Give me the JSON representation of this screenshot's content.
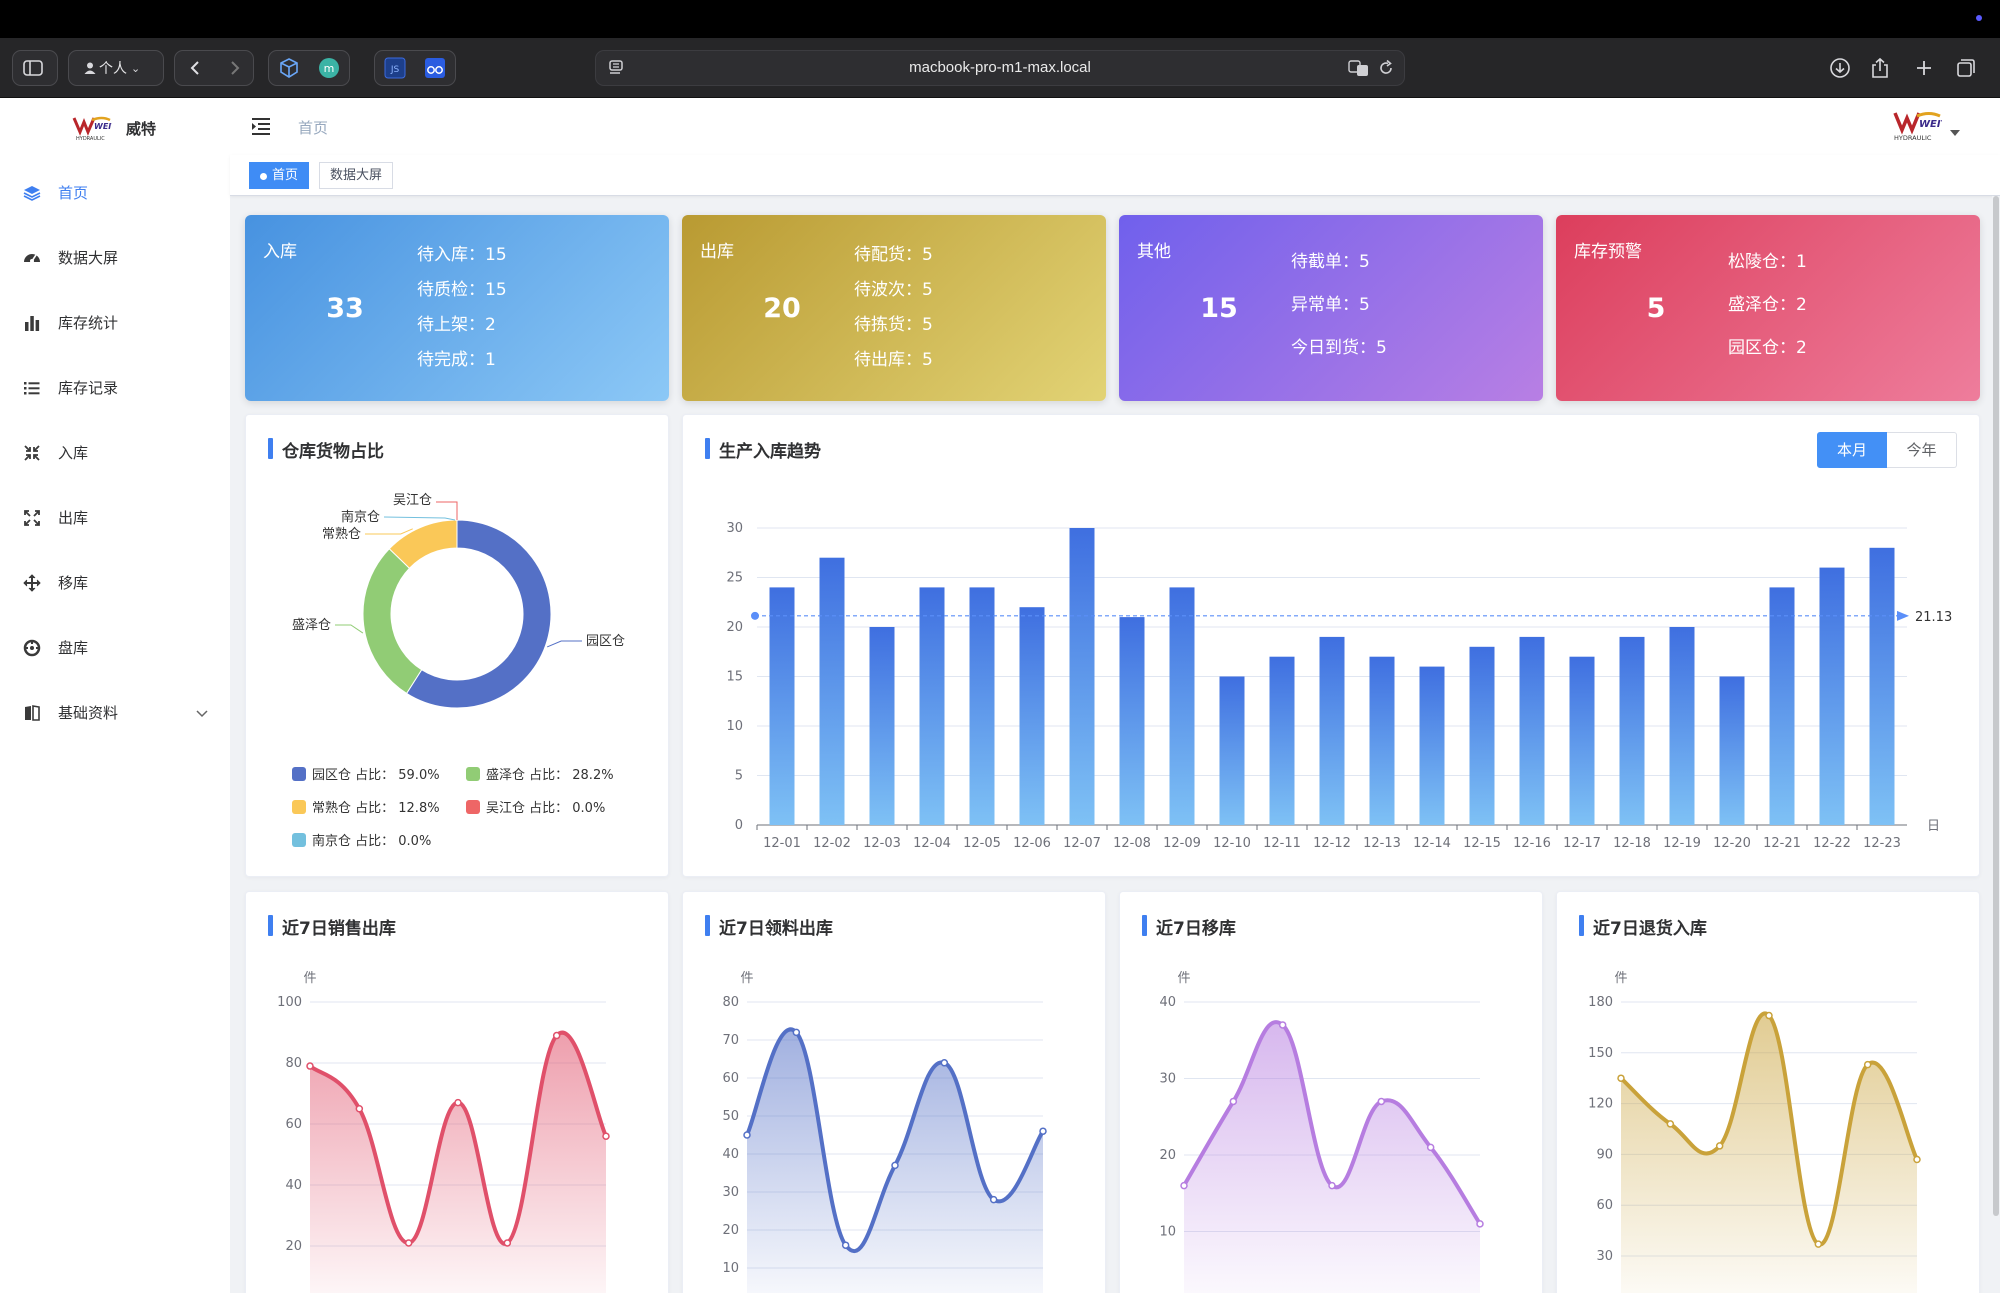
{
  "browser": {
    "url": "macbook-pro-m1-max.local",
    "profile": "个人"
  },
  "app": {
    "brand": "威特",
    "logo_text": "WEITE",
    "logo_sub": "HYDRAULIC"
  },
  "sidebar": {
    "items": [
      {
        "label": "首页",
        "icon": "layers-icon",
        "active": true
      },
      {
        "label": "数据大屏",
        "icon": "dashboard-icon"
      },
      {
        "label": "库存统计",
        "icon": "bar-chart-icon"
      },
      {
        "label": "库存记录",
        "icon": "list-icon"
      },
      {
        "label": "入库",
        "icon": "compress-icon"
      },
      {
        "label": "出库",
        "icon": "expand-icon"
      },
      {
        "label": "移库",
        "icon": "move-icon"
      },
      {
        "label": "盘库",
        "icon": "gauge-icon"
      },
      {
        "label": "基础资料",
        "icon": "book-icon",
        "has_children": true
      }
    ]
  },
  "header": {
    "breadcrumb": "首页"
  },
  "tags": [
    {
      "label": "首页",
      "active": true
    },
    {
      "label": "数据大屏",
      "active": false
    }
  ],
  "cards": {
    "inbound": {
      "title": "入库",
      "total": "33",
      "items": [
        "待入库：15",
        "待质检：15",
        "待上架：2",
        "待完成：1"
      ]
    },
    "outbound": {
      "title": "出库",
      "total": "20",
      "items": [
        "待配货：5",
        "待波次：5",
        "待拣货：5",
        "待出库：5"
      ]
    },
    "other": {
      "title": "其他",
      "total": "15",
      "items": [
        "待截单：5",
        "异常单：5",
        "今日到货：5"
      ]
    },
    "warning": {
      "title": "库存预警",
      "total": "5",
      "items": [
        "松陵仓：1",
        "盛泽仓：2",
        "园区仓：2"
      ]
    }
  },
  "pie_panel": {
    "title": "仓库货物占比",
    "legend": [
      "园区仓  占比：  59.0%",
      "盛泽仓  占比：  28.2%",
      "常熟仓  占比：  12.8%",
      "吴江仓  占比：  0.0%",
      "南京仓  占比：  0.0%"
    ]
  },
  "trend_panel": {
    "title": "生产入库趋势",
    "tab_month": "本月",
    "tab_year": "今年",
    "x_unit": "日",
    "mark_label": "21.13"
  },
  "small_panels": {
    "sales": {
      "title": "近7日销售出库",
      "unit": "件"
    },
    "material": {
      "title": "近7日领料出库",
      "unit": "件"
    },
    "transfer": {
      "title": "近7日移库",
      "unit": "件"
    },
    "returns": {
      "title": "近7日退货入库",
      "unit": "件"
    }
  },
  "colors": {
    "accent": "#3f7ff0",
    "pie": [
      "#5470c6",
      "#91cc75",
      "#fac858",
      "#ee6666",
      "#73c0de"
    ],
    "sales": "#e0506a",
    "material": "#5470c6",
    "transfer": "#b67de0",
    "returns": "#c9a23a"
  },
  "chart_data": [
    {
      "type": "pie",
      "title": "仓库货物占比",
      "categories": [
        "园区仓",
        "盛泽仓",
        "常熟仓",
        "吴江仓",
        "南京仓"
      ],
      "values": [
        59.0,
        28.2,
        12.8,
        0.0,
        0.0
      ]
    },
    {
      "type": "bar",
      "title": "生产入库趋势",
      "categories": [
        "12-01",
        "12-02",
        "12-03",
        "12-04",
        "12-05",
        "12-06",
        "12-07",
        "12-08",
        "12-09",
        "12-10",
        "12-11",
        "12-12",
        "12-13",
        "12-14",
        "12-15",
        "12-16",
        "12-17",
        "12-18",
        "12-19",
        "12-20",
        "12-21",
        "12-22",
        "12-23"
      ],
      "values": [
        24,
        27,
        20,
        24,
        24,
        22,
        30,
        21,
        24,
        15,
        17,
        19,
        17,
        16,
        18,
        19,
        17,
        19,
        20,
        15,
        24,
        26,
        28
      ],
      "ylim": [
        0,
        30
      ],
      "yticks": [
        0,
        5,
        10,
        15,
        20,
        25,
        30
      ],
      "average_line": 21.13,
      "xlabel": "日"
    },
    {
      "type": "area",
      "title": "近7日销售出库",
      "ylabel": "件",
      "values": [
        79,
        65,
        21,
        67,
        21,
        89,
        56
      ],
      "yticks": [
        20,
        40,
        60,
        80,
        100
      ],
      "ylim": [
        0,
        100
      ]
    },
    {
      "type": "area",
      "title": "近7日领料出库",
      "ylabel": "件",
      "values": [
        45,
        72,
        16,
        37,
        64,
        28,
        46
      ],
      "yticks": [
        10,
        20,
        30,
        40,
        50,
        60,
        70,
        80
      ],
      "ylim": [
        0,
        80
      ]
    },
    {
      "type": "area",
      "title": "近7日移库",
      "ylabel": "件",
      "values": [
        16,
        27,
        37,
        16,
        27,
        21,
        11
      ],
      "yticks": [
        10,
        20,
        30,
        40
      ],
      "ylim": [
        0,
        40
      ]
    },
    {
      "type": "area",
      "title": "近7日退货入库",
      "ylabel": "件",
      "values": [
        135,
        108,
        95,
        172,
        37,
        143,
        87
      ],
      "yticks": [
        30,
        60,
        90,
        120,
        150,
        180
      ],
      "ylim": [
        0,
        180
      ]
    }
  ]
}
